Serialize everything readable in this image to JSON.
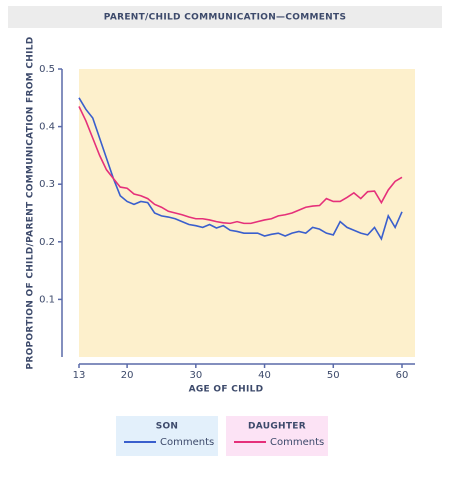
{
  "chart_data": {
    "type": "line",
    "title": "PARENT/CHILD COMMUNICATION—COMMENTS",
    "x_label": "AGE OF CHILD",
    "y_label": "PROPORTION OF CHILD/PARENT COMMUNICATION FROM CHILD",
    "x": [
      13,
      14,
      15,
      16,
      17,
      18,
      19,
      20,
      21,
      22,
      23,
      24,
      25,
      26,
      27,
      28,
      29,
      30,
      31,
      32,
      33,
      34,
      35,
      36,
      37,
      38,
      39,
      40,
      41,
      42,
      43,
      44,
      45,
      46,
      47,
      48,
      49,
      50,
      51,
      52,
      53,
      54,
      55,
      56,
      57,
      58,
      59,
      60
    ],
    "series": [
      {
        "group": "SON",
        "name": "Comments",
        "color": "#3a5fcd",
        "values": [
          0.45,
          0.43,
          0.415,
          0.38,
          0.345,
          0.31,
          0.28,
          0.27,
          0.265,
          0.27,
          0.268,
          0.25,
          0.245,
          0.243,
          0.24,
          0.235,
          0.23,
          0.228,
          0.225,
          0.23,
          0.224,
          0.228,
          0.22,
          0.218,
          0.215,
          0.215,
          0.215,
          0.21,
          0.213,
          0.215,
          0.21,
          0.215,
          0.218,
          0.215,
          0.225,
          0.222,
          0.215,
          0.212,
          0.235,
          0.225,
          0.22,
          0.215,
          0.212,
          0.225,
          0.205,
          0.245,
          0.225,
          0.252
        ]
      },
      {
        "group": "DAUGHTER",
        "name": "Comments",
        "color": "#e5307a",
        "values": [
          0.435,
          0.41,
          0.38,
          0.35,
          0.325,
          0.31,
          0.295,
          0.293,
          0.283,
          0.28,
          0.275,
          0.265,
          0.26,
          0.253,
          0.25,
          0.247,
          0.243,
          0.24,
          0.24,
          0.238,
          0.235,
          0.233,
          0.232,
          0.235,
          0.232,
          0.232,
          0.235,
          0.238,
          0.24,
          0.245,
          0.247,
          0.25,
          0.255,
          0.26,
          0.262,
          0.263,
          0.275,
          0.27,
          0.27,
          0.277,
          0.285,
          0.275,
          0.287,
          0.288,
          0.268,
          0.29,
          0.305,
          0.312
        ]
      }
    ],
    "xlim": [
      13,
      62
    ],
    "xticks": [
      13,
      20,
      30,
      40,
      50,
      60
    ],
    "ylim": [
      0,
      0.5
    ],
    "yticks": [
      0.1,
      0.2,
      0.3,
      0.4,
      0.5
    ],
    "plot_background": "#fdf0cc"
  }
}
